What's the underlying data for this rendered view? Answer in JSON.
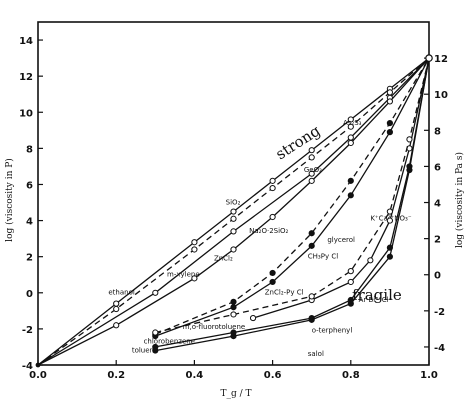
{
  "chart_data": {
    "type": "line",
    "xlabel": "T_g / T",
    "ylabel_left": "log (viscosity in P)",
    "ylabel_right": "log (viscosity in Pa s)",
    "xlim": [
      0.0,
      1.0
    ],
    "ylim": [
      -4,
      15
    ],
    "x_ticks": [
      "0.0",
      "0.2",
      "0.4",
      "0.6",
      "0.8",
      "1.0"
    ],
    "y_ticks_left": [
      "-4",
      "-2",
      "0",
      "2",
      "4",
      "6",
      "8",
      "10",
      "12",
      "14"
    ],
    "y_ticks_right": [
      "-4",
      "-2",
      "0",
      "2",
      "4",
      "6",
      "8",
      "10",
      "12"
    ],
    "annotations": {
      "strong": "strong",
      "fragile": "fragile"
    },
    "series": [
      {
        "name": "SiO₂",
        "style": "solid",
        "marker": "open",
        "points": [
          [
            0.0,
            -4
          ],
          [
            0.2,
            -0.6
          ],
          [
            0.4,
            2.8
          ],
          [
            0.5,
            4.5
          ],
          [
            0.6,
            6.2
          ],
          [
            0.7,
            7.9
          ],
          [
            0.8,
            9.6
          ],
          [
            0.9,
            11.3
          ],
          [
            1.0,
            13
          ]
        ]
      },
      {
        "name": "GeO₂",
        "style": "dashed",
        "marker": "open",
        "points": [
          [
            0.0,
            -4
          ],
          [
            0.2,
            -0.9
          ],
          [
            0.4,
            2.4
          ],
          [
            0.5,
            4.1
          ],
          [
            0.6,
            5.8
          ],
          [
            0.7,
            7.5
          ],
          [
            0.8,
            9.2
          ],
          [
            0.9,
            11.1
          ],
          [
            1.0,
            13
          ]
        ]
      },
      {
        "name": "As₂S₃",
        "style": "solid",
        "marker": "open",
        "points": [
          [
            0.0,
            -4
          ],
          [
            0.3,
            0.0
          ],
          [
            0.5,
            3.4
          ],
          [
            0.7,
            6.6
          ],
          [
            0.8,
            8.6
          ],
          [
            0.9,
            10.8
          ],
          [
            1.0,
            13
          ]
        ]
      },
      {
        "name": "Na₂O·2SiO₂",
        "style": "solid",
        "marker": "open",
        "points": [
          [
            0.0,
            -4
          ],
          [
            0.2,
            -1.8
          ],
          [
            0.4,
            0.8
          ],
          [
            0.5,
            2.4
          ],
          [
            0.6,
            4.2
          ],
          [
            0.7,
            6.2
          ],
          [
            0.8,
            8.3
          ],
          [
            0.9,
            10.6
          ],
          [
            1.0,
            13
          ]
        ]
      },
      {
        "name": "ZnCl₂",
        "style": "dashed",
        "marker": "filled",
        "points": [
          [
            0.3,
            -2.3
          ],
          [
            0.5,
            -0.5
          ],
          [
            0.6,
            1.1
          ],
          [
            0.7,
            3.3
          ],
          [
            0.8,
            6.2
          ],
          [
            0.9,
            9.4
          ],
          [
            1.0,
            13
          ]
        ]
      },
      {
        "name": "glycerol",
        "style": "solid",
        "marker": "filled",
        "points": [
          [
            0.3,
            -2.4
          ],
          [
            0.5,
            -0.8
          ],
          [
            0.6,
            0.6
          ],
          [
            0.7,
            2.6
          ],
          [
            0.8,
            5.4
          ],
          [
            0.9,
            8.9
          ],
          [
            1.0,
            13
          ]
        ]
      },
      {
        "name": "CKN",
        "style": "solid",
        "marker": "open",
        "points": [
          [
            0.55,
            -1.4
          ],
          [
            0.7,
            -0.4
          ],
          [
            0.8,
            0.6
          ],
          [
            0.85,
            1.8
          ],
          [
            0.9,
            4.0
          ],
          [
            0.95,
            8.0
          ],
          [
            1.0,
            13
          ]
        ]
      },
      {
        "name": "m-xylene",
        "style": "dashed",
        "marker": "open",
        "points": [
          [
            0.3,
            -2.2
          ],
          [
            0.5,
            -1.2
          ],
          [
            0.7,
            -0.2
          ],
          [
            0.8,
            1.2
          ],
          [
            0.9,
            4.5
          ],
          [
            0.95,
            8.5
          ],
          [
            1.0,
            13
          ]
        ]
      },
      {
        "name": "o-terphenyl",
        "style": "solid",
        "marker": "filled",
        "points": [
          [
            0.3,
            -3.0
          ],
          [
            0.5,
            -2.2
          ],
          [
            0.7,
            -1.4
          ],
          [
            0.8,
            -0.4
          ],
          [
            0.9,
            2.5
          ],
          [
            0.95,
            7.0
          ],
          [
            1.0,
            13
          ]
        ]
      },
      {
        "name": "toluene",
        "style": "solid",
        "marker": "filled",
        "points": [
          [
            0.3,
            -3.2
          ],
          [
            0.5,
            -2.4
          ],
          [
            0.7,
            -1.5
          ],
          [
            0.8,
            -0.6
          ],
          [
            0.9,
            2.0
          ],
          [
            0.95,
            6.8
          ],
          [
            1.0,
            13
          ]
        ]
      }
    ],
    "labels": [
      {
        "text": "SiO₂",
        "x": 0.48,
        "y": 4.9
      },
      {
        "text": "GeO₂",
        "x": 0.68,
        "y": 6.7
      },
      {
        "text": "As₂S₃",
        "x": 0.78,
        "y": 9.3
      },
      {
        "text": "Na₂O·2SiO₂",
        "x": 0.54,
        "y": 3.3
      },
      {
        "text": "ZnCl₂",
        "x": 0.45,
        "y": 1.8
      },
      {
        "text": "m-xylene",
        "x": 0.33,
        "y": 0.9
      },
      {
        "text": "glycerol",
        "x": 0.74,
        "y": 2.8
      },
      {
        "text": "CH₃Py Cl",
        "x": 0.69,
        "y": 1.9
      },
      {
        "text": "K⁺Ca²⁺NO₃⁻",
        "x": 0.85,
        "y": 4.0
      },
      {
        "text": "ethanol",
        "x": 0.18,
        "y": -0.1
      },
      {
        "text": "ZnCl₂-Py Cl",
        "x": 0.58,
        "y": -0.1
      },
      {
        "text": "Ar Bi³⁺Cl⁻",
        "x": 0.82,
        "y": -0.5
      },
      {
        "text": "m,o-fluorotoluene",
        "x": 0.37,
        "y": -2.0
      },
      {
        "text": "chlorobenzene",
        "x": 0.27,
        "y": -2.8
      },
      {
        "text": "toluene",
        "x": 0.24,
        "y": -3.3
      },
      {
        "text": "o-terphenyl",
        "x": 0.7,
        "y": -2.2
      },
      {
        "text": "salol",
        "x": 0.69,
        "y": -3.5
      }
    ],
    "grid": false
  }
}
